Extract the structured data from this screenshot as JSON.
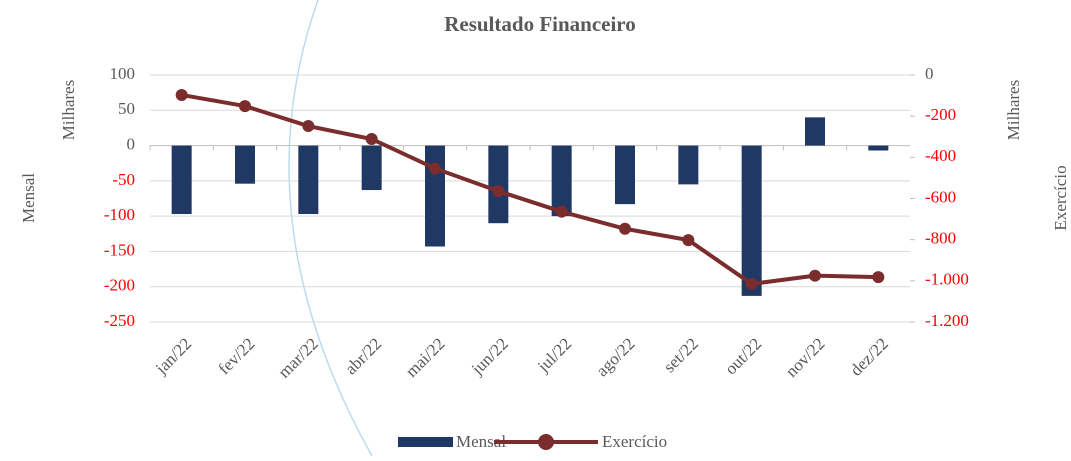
{
  "chart_data": {
    "type": "bar_line",
    "title": "Resultado Financeiro",
    "y_label": "Mensal",
    "y_unit": "Milhares",
    "y2_label": "Exercício",
    "y2_unit": "Milhares",
    "categories": [
      "jan/22",
      "fev/22",
      "mar/22",
      "abr/22",
      "mai/22",
      "jun/22",
      "jul/22",
      "ago/22",
      "set/22",
      "out/22",
      "nov/22",
      "dez/22"
    ],
    "series": [
      {
        "name": "Mensal",
        "type": "bar",
        "color": "#1f3864",
        "values": [
          -97,
          -54,
          -97,
          -63,
          -143,
          -110,
          -100,
          -83,
          -55,
          -213,
          40,
          -7
        ]
      },
      {
        "name": "Exercício",
        "type": "line",
        "axis": "y2",
        "color": "#7b2c2c",
        "values": [
          -97,
          -151,
          -248,
          -311,
          -454,
          -564,
          -664,
          -747,
          -802,
          -1015,
          -975,
          -982
        ]
      }
    ],
    "ylim": [
      -250,
      100
    ],
    "yticks": [
      100,
      50,
      0,
      -50,
      -100,
      -150,
      -200,
      -250
    ],
    "y2lim": [
      -1200,
      0
    ],
    "y2ticks": [
      0,
      -200,
      -400,
      -600,
      -800,
      {
        "value": -1000,
        "label": "-1.000"
      },
      {
        "value": -1200,
        "label": "-1.200"
      }
    ],
    "grid": true,
    "tick_color": "#595959",
    "negative_tick_color": "#ff0000",
    "legend": "bottom"
  }
}
